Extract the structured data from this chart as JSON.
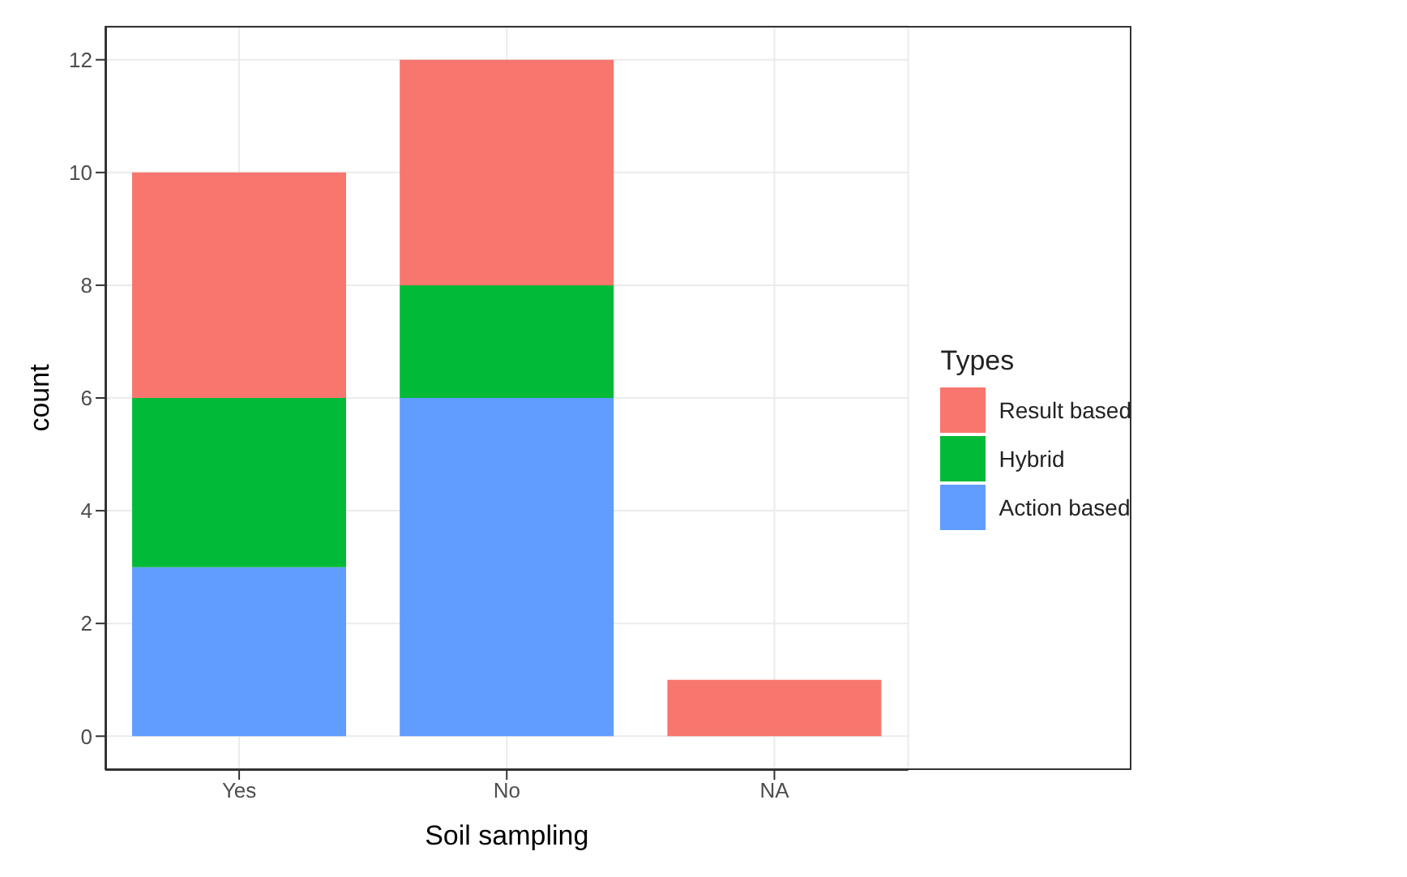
{
  "chart_data": {
    "type": "bar",
    "xlabel": "Soil sampling",
    "ylabel": "count",
    "legend_title": "Types",
    "categories": [
      "Yes",
      "No",
      "NA"
    ],
    "stacked": true,
    "series": [
      {
        "name": "Action based",
        "color": "#619cff",
        "values": [
          3,
          6,
          0
        ]
      },
      {
        "name": "Hybrid",
        "color": "#00ba38",
        "values": [
          3,
          2,
          0
        ]
      },
      {
        "name": "Result based",
        "color": "#f8766d",
        "values": [
          4,
          4,
          1
        ]
      }
    ],
    "ylim": [
      -0.6,
      12.6
    ],
    "yticks": [
      0,
      2,
      4,
      6,
      8,
      10,
      12
    ],
    "grid": true,
    "legend": "right"
  }
}
